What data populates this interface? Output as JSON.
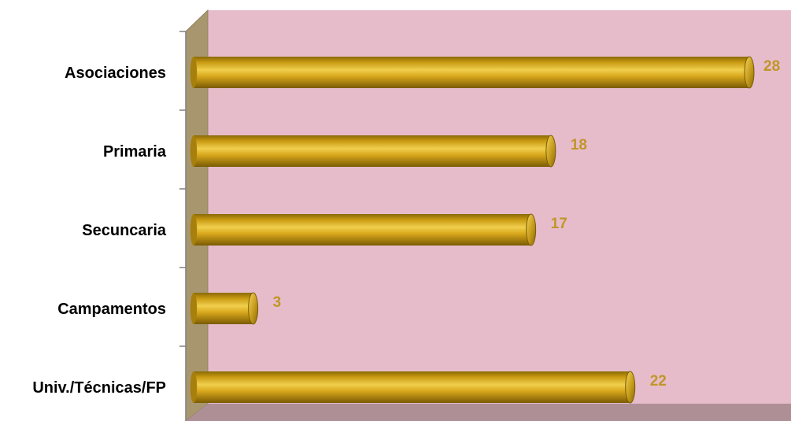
{
  "chart_data": {
    "type": "bar",
    "orientation": "horizontal",
    "style": "3d-cylinder",
    "categories": [
      "Asociaciones",
      "Primaria",
      "Secuncaria",
      "Campamentos",
      "Univ./Técnicas/FP"
    ],
    "values": [
      28,
      18,
      17,
      3,
      22
    ],
    "data_labels": [
      "28",
      "18",
      "17",
      "3",
      "22"
    ],
    "title": "",
    "xlabel": "",
    "ylabel": "",
    "xlim": [
      0,
      28
    ],
    "grid": false,
    "legend": "none",
    "colors": {
      "plot_back": "#e6bccb",
      "side_wall": "#a8976e",
      "floor": "#ae8f96",
      "bar_fill": "#d9a81c",
      "bar_dark": "#8a6a05",
      "bar_light": "#f0cf4e",
      "value_label": "#c09628"
    }
  }
}
